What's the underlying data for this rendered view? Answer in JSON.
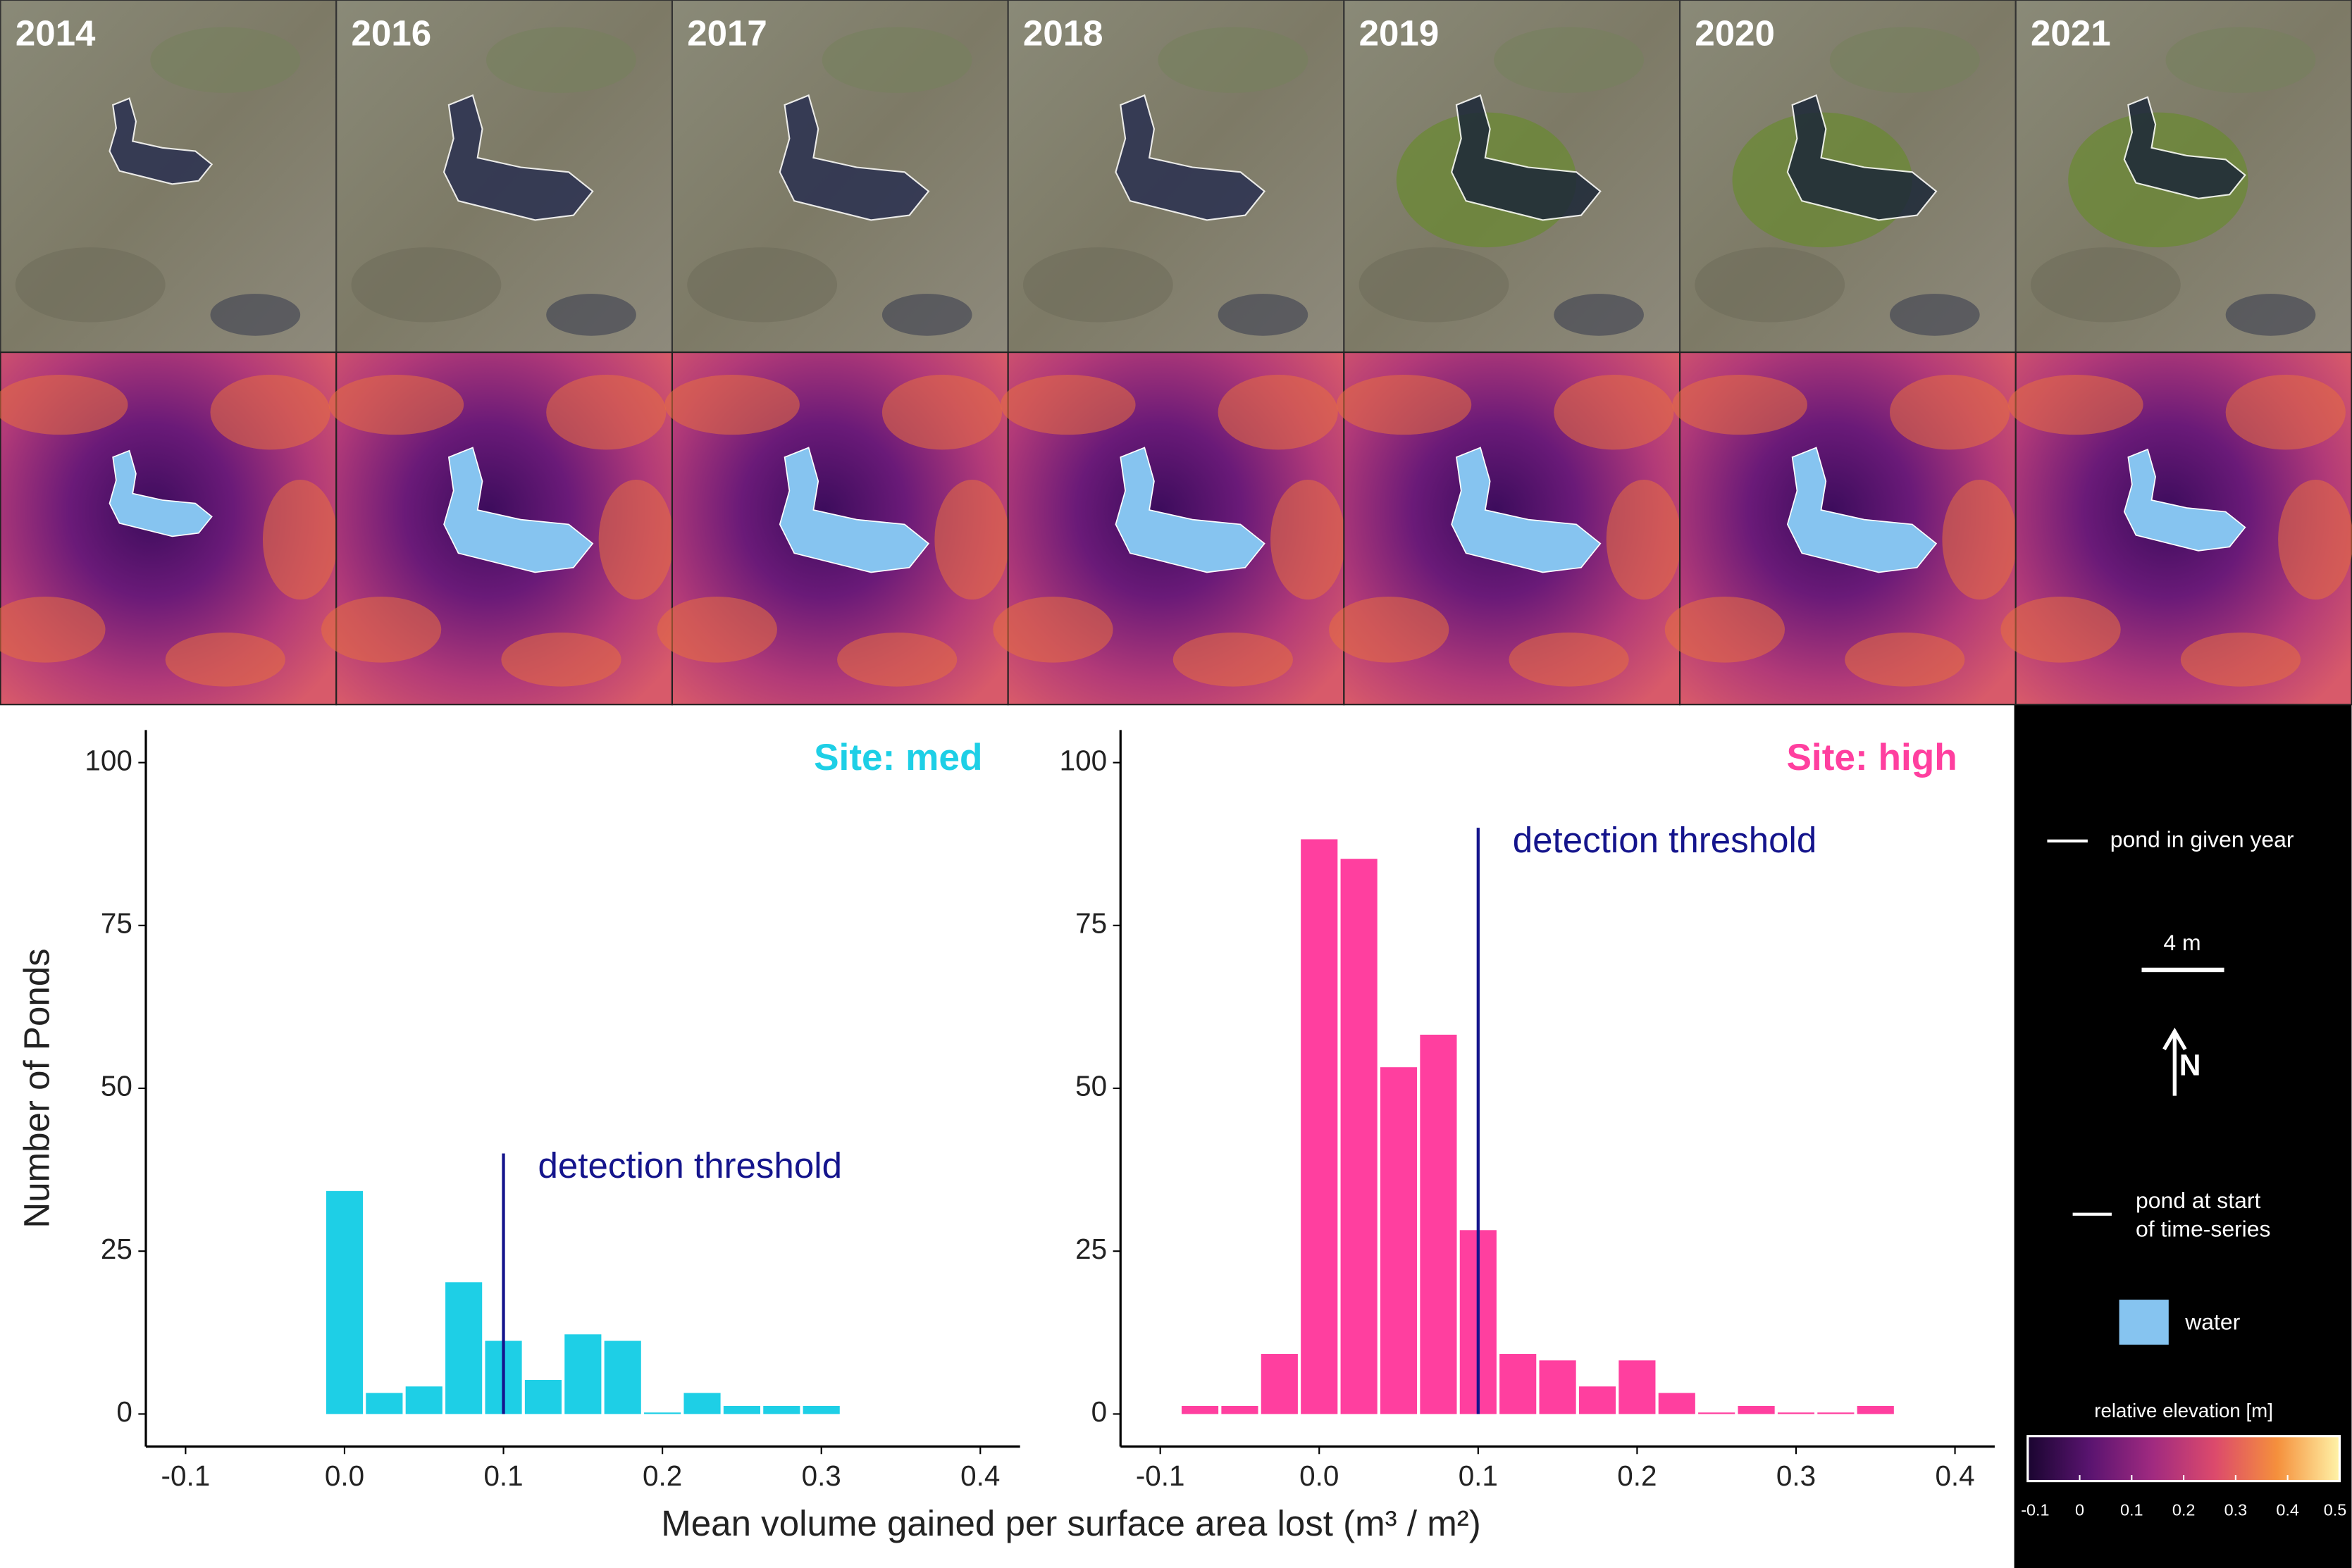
{
  "panels": {
    "years": [
      "2014",
      "2016",
      "2017",
      "2018",
      "2019",
      "2020",
      "2021"
    ]
  },
  "chart_data": [
    {
      "type": "histogram",
      "title": "Site: med",
      "color": "#1ecfe6",
      "ylabel": "Number of Ponds",
      "xlabel": "Mean volume gained per surface area lost (m³ / m²)",
      "bins": [
        -0.0125,
        0.0125,
        0.0375,
        0.0625,
        0.0875,
        0.1125,
        0.1375,
        0.1625,
        0.1875,
        0.2125,
        0.2375,
        0.2625,
        0.2875,
        0.3125
      ],
      "values": [
        34,
        3,
        4,
        20,
        11,
        5,
        12,
        11,
        0,
        3,
        1,
        1,
        1
      ],
      "xlim": [
        -0.125,
        0.425
      ],
      "ylim": [
        -5,
        105
      ],
      "xticks": [
        -0.1,
        {
          "value": 0,
          "label": "0.0"
        },
        0.1,
        0.2,
        0.3,
        0.4
      ],
      "yticks": [
        0,
        25,
        50,
        75,
        100
      ],
      "threshold": {
        "x": 0.1,
        "top": 40,
        "label": "detection threshold",
        "color": "#14148c"
      }
    },
    {
      "type": "histogram",
      "title": "Site: high",
      "color": "#ff3f9f",
      "bins": [
        -0.0875,
        -0.0625,
        -0.0375,
        -0.0125,
        0.0125,
        0.0375,
        0.0625,
        0.0875,
        0.1125,
        0.1375,
        0.1625,
        0.1875,
        0.2125,
        0.2375,
        0.2625,
        0.2875,
        0.3125,
        0.3375,
        0.3625
      ],
      "values": [
        1,
        1,
        9,
        88,
        85,
        53,
        58,
        28,
        9,
        8,
        4,
        8,
        3,
        0,
        1,
        0,
        0,
        1
      ],
      "xlim": [
        -0.125,
        0.425
      ],
      "ylim": [
        -5,
        105
      ],
      "xticks": [
        -0.1,
        {
          "value": 0,
          "label": "0.0"
        },
        0.1,
        0.2,
        0.3,
        0.4
      ],
      "yticks": [
        0,
        25,
        50,
        75,
        100
      ],
      "threshold": {
        "x": 0.1,
        "top": 90,
        "label": "detection threshold",
        "color": "#14148c"
      }
    }
  ],
  "legend": {
    "pond_year": "pond in given year",
    "scale": "4 m",
    "north": "N",
    "pond_start": [
      "pond at start",
      "of time-series"
    ],
    "water": "water"
  },
  "colorbar": {
    "title": "relative elevation [m]",
    "lim": [
      -0.1,
      0.5
    ],
    "ticks": [
      -0.1,
      0,
      0.1,
      0.2,
      0.3,
      0.4,
      0.5
    ]
  }
}
